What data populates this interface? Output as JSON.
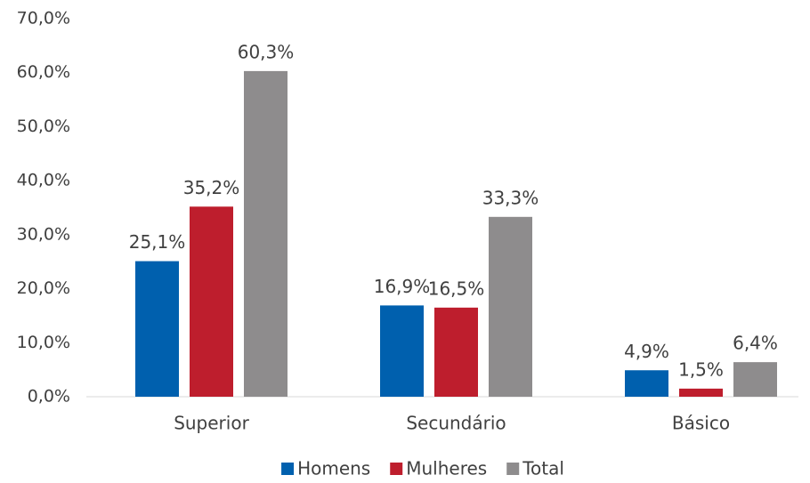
{
  "chart_data": {
    "type": "bar",
    "categories": [
      "Superior",
      "Secundário",
      "Básico"
    ],
    "series": [
      {
        "name": "Homens",
        "color": "#0060ae",
        "values": [
          25.1,
          16.9,
          4.9
        ],
        "value_labels": [
          "25,1%",
          "16,9%",
          "4,9%"
        ]
      },
      {
        "name": "Mulheres",
        "color": "#be1e2d",
        "values": [
          35.2,
          16.5,
          1.5
        ],
        "value_labels": [
          "35,2%",
          "16,5%",
          "1,5%"
        ]
      },
      {
        "name": "Total",
        "color": "#8e8c8d",
        "values": [
          60.3,
          33.3,
          6.4
        ],
        "value_labels": [
          "60,3%",
          "33,3%",
          "6,4%"
        ]
      }
    ],
    "ylim": [
      0,
      70
    ],
    "yticks": [
      {
        "value": 0,
        "label": "0,0%"
      },
      {
        "value": 10,
        "label": "10,0%"
      },
      {
        "value": 20,
        "label": "20,0%"
      },
      {
        "value": 30,
        "label": "30,0%"
      },
      {
        "value": 40,
        "label": "40,0%"
      },
      {
        "value": 50,
        "label": "50,0%"
      },
      {
        "value": 60,
        "label": "60,0%"
      },
      {
        "value": 70,
        "label": "70,0%"
      }
    ],
    "grid": false,
    "legend": "bottom"
  }
}
